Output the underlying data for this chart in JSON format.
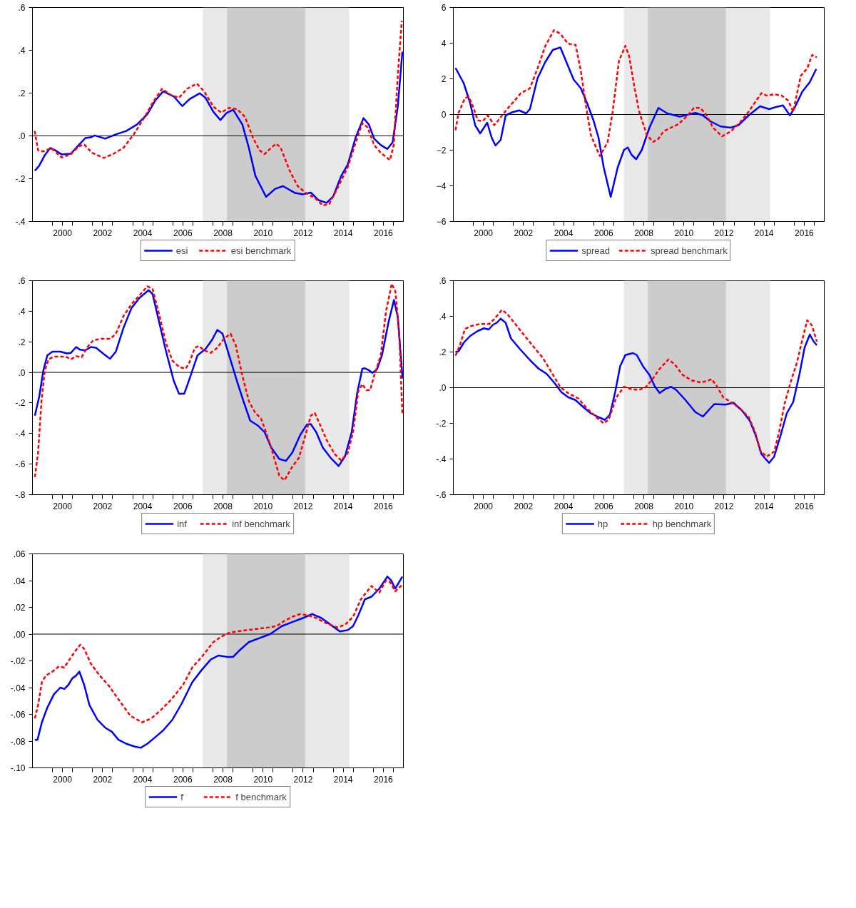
{
  "chart_data": [
    {
      "type": "line",
      "xlim": [
        1999.0,
        2017.5
      ],
      "ylim": [
        -0.4,
        0.6
      ],
      "grid": false,
      "legend": "bottom",
      "xticks": [
        {
          "value": 2000,
          "label": null
        },
        {
          "value": 2000.5,
          "label": "2000"
        },
        {
          "value": 2001,
          "label": null
        },
        {
          "value": 2002,
          "label": null
        },
        {
          "value": 2002.5,
          "label": "2002"
        },
        {
          "value": 2003,
          "label": null
        },
        {
          "value": 2004,
          "label": null
        },
        {
          "value": 2004.5,
          "label": "2004"
        },
        {
          "value": 2005,
          "label": null
        },
        {
          "value": 2006,
          "label": null
        },
        {
          "value": 2006.5,
          "label": "2006"
        },
        {
          "value": 2007,
          "label": null
        },
        {
          "value": 2008,
          "label": null
        },
        {
          "value": 2008.5,
          "label": "2008"
        },
        {
          "value": 2009,
          "label": null
        },
        {
          "value": 2010,
          "label": null
        },
        {
          "value": 2010.5,
          "label": "2010"
        },
        {
          "value": 2011,
          "label": null
        },
        {
          "value": 2012,
          "label": null
        },
        {
          "value": 2012.5,
          "label": "2012"
        },
        {
          "value": 2013,
          "label": null
        },
        {
          "value": 2014,
          "label": null
        },
        {
          "value": 2014.5,
          "label": "2014"
        },
        {
          "value": 2015,
          "label": null
        },
        {
          "value": 2016,
          "label": null
        },
        {
          "value": 2016.5,
          "label": "2016"
        },
        {
          "value": 2017,
          "label": null
        }
      ],
      "yticks": [
        {
          "value": -0.4,
          "label": "-.4"
        },
        {
          "value": -0.2,
          "label": "-.2"
        },
        {
          "value": 0,
          "label": ".0"
        },
        {
          "value": 0.2,
          "label": ".2"
        },
        {
          "value": 0.4,
          "label": ".4"
        },
        {
          "value": 0.6,
          "label": ".6"
        }
      ],
      "bands": [
        {
          "axis": "x",
          "from": 2007.5,
          "to": 2014.8,
          "color": "#e8e8e8"
        },
        {
          "axis": "x",
          "from": 2008.7,
          "to": 2012.6,
          "color": "#cccccc"
        }
      ],
      "ref_lines": [
        {
          "axis": "y",
          "value": 0,
          "color": "#000000"
        }
      ],
      "series": [
        {
          "name": "esi",
          "color": "#0000ff",
          "line_style": "solid",
          "x": [
            1999.12,
            1999.34,
            1999.61,
            1999.89,
            2000.13,
            2000.46,
            2000.92,
            2001.31,
            2001.64,
            2001.91,
            2002.1,
            2002.63,
            2003.16,
            2003.68,
            2004.21,
            2004.73,
            2005.13,
            2005.52,
            2006.05,
            2006.47,
            2006.84,
            2007.34,
            2007.63,
            2008.02,
            2008.37,
            2008.68,
            2009.01,
            2009.47,
            2009.79,
            2010.12,
            2010.65,
            2011.11,
            2011.5,
            2012.1,
            2012.49,
            2012.88,
            2013.28,
            2013.67,
            2014.0,
            2014.4,
            2014.73,
            2015.12,
            2015.51,
            2015.78,
            2016.04,
            2016.37,
            2016.7,
            2016.96,
            2017.22,
            2017.45
          ],
          "values": [
            -0.163,
            -0.139,
            -0.091,
            -0.057,
            -0.067,
            -0.087,
            -0.083,
            -0.043,
            -0.01,
            -0.007,
            0.002,
            -0.013,
            0.007,
            0.023,
            0.053,
            0.101,
            0.166,
            0.208,
            0.184,
            0.139,
            0.172,
            0.199,
            0.178,
            0.113,
            0.074,
            0.107,
            0.122,
            0.053,
            -0.055,
            -0.187,
            -0.285,
            -0.247,
            -0.235,
            -0.267,
            -0.273,
            -0.265,
            -0.301,
            -0.313,
            -0.283,
            -0.187,
            -0.133,
            -0.007,
            0.083,
            0.053,
            -0.013,
            -0.043,
            -0.061,
            -0.031,
            0.137,
            0.394
          ]
        },
        {
          "name": "esi benchmark",
          "color": "#ff0000",
          "line_style": "dashed",
          "x": [
            1999.11,
            1999.28,
            1999.54,
            1999.93,
            2000.46,
            2000.92,
            2001.31,
            2001.58,
            2001.97,
            2002.56,
            2003.02,
            2003.55,
            2004.08,
            2004.6,
            2004.99,
            2005.46,
            2005.92,
            2006.31,
            2006.71,
            2007.2,
            2007.56,
            2008.02,
            2008.41,
            2008.81,
            2009.2,
            2009.6,
            2009.99,
            2010.32,
            2010.58,
            2010.91,
            2011.15,
            2011.37,
            2011.83,
            2012.23,
            2012.62,
            2013.15,
            2013.48,
            2013.8,
            2014.2,
            2014.73,
            2015.12,
            2015.45,
            2015.71,
            2016.04,
            2016.37,
            2016.83,
            2017.02,
            2017.22,
            2017.42
          ],
          "values": [
            0.023,
            -0.067,
            -0.073,
            -0.057,
            -0.101,
            -0.085,
            -0.049,
            -0.04,
            -0.079,
            -0.103,
            -0.085,
            -0.055,
            0.011,
            0.089,
            0.154,
            0.22,
            0.19,
            0.178,
            0.22,
            0.244,
            0.208,
            0.137,
            0.109,
            0.131,
            0.125,
            0.089,
            -0.007,
            -0.067,
            -0.085,
            -0.055,
            -0.037,
            -0.053,
            -0.163,
            -0.235,
            -0.265,
            -0.295,
            -0.325,
            -0.319,
            -0.247,
            -0.145,
            -0.031,
            0.059,
            0.041,
            -0.043,
            -0.079,
            -0.113,
            -0.043,
            0.28,
            0.538
          ]
        }
      ]
    },
    {
      "type": "line",
      "xlim": [
        1999.0,
        2017.5
      ],
      "ylim": [
        -6,
        6
      ],
      "grid": false,
      "legend": "bottom",
      "xticks": [
        {
          "value": 2000,
          "label": null
        },
        {
          "value": 2000.5,
          "label": "2000"
        },
        {
          "value": 2001,
          "label": null
        },
        {
          "value": 2002,
          "label": null
        },
        {
          "value": 2002.5,
          "label": "2002"
        },
        {
          "value": 2003,
          "label": null
        },
        {
          "value": 2004,
          "label": null
        },
        {
          "value": 2004.5,
          "label": "2004"
        },
        {
          "value": 2005,
          "label": null
        },
        {
          "value": 2006,
          "label": null
        },
        {
          "value": 2006.5,
          "label": "2006"
        },
        {
          "value": 2007,
          "label": null
        },
        {
          "value": 2008,
          "label": null
        },
        {
          "value": 2008.5,
          "label": "2008"
        },
        {
          "value": 2009,
          "label": null
        },
        {
          "value": 2010,
          "label": null
        },
        {
          "value": 2010.5,
          "label": "2010"
        },
        {
          "value": 2011,
          "label": null
        },
        {
          "value": 2012,
          "label": null
        },
        {
          "value": 2012.5,
          "label": "2012"
        },
        {
          "value": 2013,
          "label": null
        },
        {
          "value": 2014,
          "label": null
        },
        {
          "value": 2014.5,
          "label": "2014"
        },
        {
          "value": 2015,
          "label": null
        },
        {
          "value": 2016,
          "label": null
        },
        {
          "value": 2016.5,
          "label": "2016"
        },
        {
          "value": 2017,
          "label": null
        }
      ],
      "yticks": [
        -6,
        -4,
        -2,
        0,
        2,
        4,
        6
      ],
      "bands": [
        {
          "axis": "x",
          "from": 2007.5,
          "to": 2014.8,
          "color": "#e8e8e8"
        },
        {
          "axis": "x",
          "from": 2008.7,
          "to": 2012.6,
          "color": "#cccccc"
        }
      ],
      "ref_lines": [
        {
          "axis": "y",
          "value": 0,
          "color": "#000000"
        }
      ],
      "series": [
        {
          "name": "spread",
          "color": "#0000ff",
          "line_style": "solid",
          "x": [
            1999.11,
            1999.52,
            1999.84,
            2000.09,
            2000.34,
            2000.69,
            2000.91,
            2001.1,
            2001.36,
            2001.61,
            2001.93,
            2002.28,
            2002.63,
            2002.82,
            2003.2,
            2003.58,
            2003.96,
            2004.34,
            2004.72,
            2005.0,
            2005.36,
            2005.67,
            2005.99,
            2006.24,
            2006.5,
            2006.85,
            2007.2,
            2007.51,
            2007.7,
            2007.89,
            2008.12,
            2008.4,
            2008.78,
            2009.23,
            2009.67,
            2010.3,
            2011.07,
            2011.45,
            2011.83,
            2012.33,
            2012.84,
            2013.22,
            2013.73,
            2014.3,
            2014.75,
            2015.06,
            2015.44,
            2015.79,
            2016.02,
            2016.4,
            2016.78,
            2017.1
          ],
          "values": [
            2.61,
            1.75,
            0.64,
            -0.61,
            -1.06,
            -0.46,
            -1.29,
            -1.74,
            -1.43,
            -0.05,
            0.12,
            0.23,
            0.06,
            0.3,
            2.03,
            2.93,
            3.62,
            3.76,
            2.72,
            1.96,
            1.47,
            0.64,
            -0.33,
            -1.29,
            -2.96,
            -4.62,
            -2.96,
            -1.99,
            -1.85,
            -2.26,
            -2.51,
            -1.99,
            -0.74,
            0.37,
            0.06,
            -0.12,
            0.09,
            -0.05,
            -0.39,
            -0.67,
            -0.74,
            -0.6,
            -0.05,
            0.46,
            0.3,
            0.41,
            0.51,
            -0.05,
            0.37,
            1.27,
            1.82,
            2.55
          ]
        },
        {
          "name": "spread benchmark",
          "color": "#ff0000",
          "line_style": "dashed",
          "x": [
            1999.11,
            1999.26,
            1999.58,
            1999.77,
            1999.96,
            2000.22,
            2000.47,
            2000.72,
            2001.04,
            2001.29,
            2001.68,
            2002.06,
            2002.37,
            2002.82,
            2003.2,
            2003.58,
            2004.02,
            2004.34,
            2004.72,
            2005.1,
            2005.36,
            2005.61,
            2005.86,
            2006.12,
            2006.31,
            2006.69,
            2006.94,
            2007.26,
            2007.58,
            2007.77,
            2008.02,
            2008.27,
            2008.65,
            2008.97,
            2009.23,
            2009.48,
            2009.8,
            2010.24,
            2010.69,
            2011.0,
            2011.32,
            2011.64,
            2011.95,
            2012.4,
            2012.84,
            2013.29,
            2013.73,
            2014.11,
            2014.37,
            2014.62,
            2015.0,
            2015.38,
            2015.7,
            2015.95,
            2016.33,
            2016.65,
            2016.9,
            2017.13
          ],
          "values": [
            -0.88,
            0.09,
            0.92,
            0.99,
            0.51,
            -0.33,
            -0.37,
            -0.05,
            -0.6,
            -0.26,
            0.3,
            0.78,
            1.2,
            1.47,
            2.58,
            3.83,
            4.73,
            4.52,
            3.97,
            3.9,
            2.44,
            0.51,
            -1.15,
            -1.85,
            -2.33,
            -1.57,
            0.09,
            3.0,
            3.85,
            3.27,
            1.61,
            0.16,
            -1.16,
            -1.54,
            -1.36,
            -0.95,
            -0.77,
            -0.53,
            -0.05,
            0.37,
            0.37,
            -0.05,
            -0.74,
            -1.22,
            -0.95,
            -0.46,
            0.16,
            0.78,
            1.2,
            1.06,
            1.13,
            1.06,
            0.78,
            0.16,
            2.17,
            2.58,
            3.34,
            3.2
          ]
        }
      ]
    },
    {
      "type": "line",
      "xlim": [
        1999.0,
        2017.5
      ],
      "ylim": [
        -0.8,
        0.6
      ],
      "grid": false,
      "legend": "bottom",
      "xticks": [
        {
          "value": 2000,
          "label": null
        },
        {
          "value": 2000.5,
          "label": "2000"
        },
        {
          "value": 2001,
          "label": null
        },
        {
          "value": 2002,
          "label": null
        },
        {
          "value": 2002.5,
          "label": "2002"
        },
        {
          "value": 2003,
          "label": null
        },
        {
          "value": 2004,
          "label": null
        },
        {
          "value": 2004.5,
          "label": "2004"
        },
        {
          "value": 2005,
          "label": null
        },
        {
          "value": 2006,
          "label": null
        },
        {
          "value": 2006.5,
          "label": "2006"
        },
        {
          "value": 2007,
          "label": null
        },
        {
          "value": 2008,
          "label": null
        },
        {
          "value": 2008.5,
          "label": "2008"
        },
        {
          "value": 2009,
          "label": null
        },
        {
          "value": 2010,
          "label": null
        },
        {
          "value": 2010.5,
          "label": "2010"
        },
        {
          "value": 2011,
          "label": null
        },
        {
          "value": 2012,
          "label": null
        },
        {
          "value": 2012.5,
          "label": "2012"
        },
        {
          "value": 2013,
          "label": null
        },
        {
          "value": 2014,
          "label": null
        },
        {
          "value": 2014.5,
          "label": "2014"
        },
        {
          "value": 2015,
          "label": null
        },
        {
          "value": 2016,
          "label": null
        },
        {
          "value": 2016.5,
          "label": "2016"
        },
        {
          "value": 2017,
          "label": null
        }
      ],
      "yticks": [
        {
          "value": -0.8,
          "label": "-.8"
        },
        {
          "value": -0.6,
          "label": "-.6"
        },
        {
          "value": -0.4,
          "label": "-.4"
        },
        {
          "value": -0.2,
          "label": "-.2"
        },
        {
          "value": 0,
          "label": ".0"
        },
        {
          "value": 0.2,
          "label": ".2"
        },
        {
          "value": 0.4,
          "label": ".4"
        },
        {
          "value": 0.6,
          "label": ".6"
        }
      ],
      "bands": [
        {
          "axis": "x",
          "from": 2007.5,
          "to": 2014.8,
          "color": "#e8e8e8"
        },
        {
          "axis": "x",
          "from": 2008.7,
          "to": 2012.6,
          "color": "#cccccc"
        }
      ],
      "ref_lines": [
        {
          "axis": "y",
          "value": 0,
          "color": "#000000"
        }
      ],
      "series": [
        {
          "name": "inf",
          "color": "#0000ff",
          "line_style": "solid",
          "x": [
            1999.12,
            1999.34,
            1999.54,
            1999.74,
            2000.0,
            2000.39,
            2000.72,
            2000.92,
            2001.18,
            2001.38,
            2001.64,
            2001.91,
            2002.17,
            2002.56,
            2002.87,
            2003.16,
            2003.55,
            2003.94,
            2004.34,
            2004.8,
            2004.99,
            2005.26,
            2005.65,
            2006.05,
            2006.31,
            2006.57,
            2006.84,
            2007.23,
            2007.63,
            2007.95,
            2008.22,
            2008.48,
            2008.81,
            2009.2,
            2009.53,
            2009.86,
            2010.26,
            2010.58,
            2010.91,
            2011.31,
            2011.64,
            2011.96,
            2012.36,
            2012.69,
            2012.88,
            2013.15,
            2013.48,
            2013.87,
            2014.27,
            2014.59,
            2014.92,
            2015.19,
            2015.45,
            2015.58,
            2015.78,
            2015.95,
            2016.18,
            2016.43,
            2016.76,
            2017.03,
            2017.22,
            2017.46
          ],
          "values": [
            -0.283,
            -0.157,
            0.01,
            0.111,
            0.136,
            0.136,
            0.124,
            0.128,
            0.166,
            0.148,
            0.144,
            0.166,
            0.161,
            0.119,
            0.089,
            0.136,
            0.295,
            0.421,
            0.488,
            0.538,
            0.513,
            0.362,
            0.144,
            -0.057,
            -0.14,
            -0.14,
            -0.04,
            0.111,
            0.153,
            0.211,
            0.278,
            0.253,
            0.111,
            -0.057,
            -0.191,
            -0.316,
            -0.35,
            -0.391,
            -0.492,
            -0.567,
            -0.579,
            -0.525,
            -0.408,
            -0.341,
            -0.338,
            -0.391,
            -0.492,
            -0.559,
            -0.613,
            -0.55,
            -0.391,
            -0.14,
            0.024,
            0.027,
            0.014,
            -0.003,
            0.019,
            0.111,
            0.329,
            0.474,
            0.362,
            -0.04
          ]
        },
        {
          "name": "inf benchmark",
          "color": "#ff0000",
          "line_style": "dashed",
          "x": [
            1999.12,
            1999.28,
            1999.45,
            1999.61,
            1999.8,
            2000.07,
            2000.66,
            2000.92,
            2001.18,
            2001.45,
            2001.71,
            2002.04,
            2002.43,
            2002.89,
            2003.16,
            2003.55,
            2003.94,
            2004.34,
            2004.73,
            2004.99,
            2005.32,
            2005.65,
            2005.98,
            2006.31,
            2006.64,
            2006.84,
            2007.1,
            2007.3,
            2007.56,
            2007.89,
            2008.22,
            2008.55,
            2008.88,
            2009.14,
            2009.47,
            2009.8,
            2010.12,
            2010.39,
            2010.65,
            2010.98,
            2011.31,
            2011.57,
            2011.96,
            2012.29,
            2012.62,
            2012.88,
            2013.08,
            2013.34,
            2013.67,
            2014.07,
            2014.4,
            2014.73,
            2014.99,
            2015.25,
            2015.45,
            2015.65,
            2015.84,
            2016.04,
            2016.37,
            2016.63,
            2016.92,
            2017.1,
            2017.29,
            2017.45
          ],
          "values": [
            -0.685,
            -0.525,
            -0.19,
            0.01,
            0.086,
            0.103,
            0.103,
            0.086,
            0.106,
            0.099,
            0.161,
            0.211,
            0.22,
            0.22,
            0.253,
            0.371,
            0.446,
            0.505,
            0.563,
            0.546,
            0.379,
            0.195,
            0.077,
            0.036,
            0.024,
            0.069,
            0.161,
            0.173,
            0.144,
            0.128,
            0.161,
            0.22,
            0.253,
            0.178,
            -0.023,
            -0.19,
            -0.266,
            -0.299,
            -0.391,
            -0.525,
            -0.676,
            -0.706,
            -0.617,
            -0.559,
            -0.408,
            -0.283,
            -0.266,
            -0.341,
            -0.442,
            -0.534,
            -0.576,
            -0.525,
            -0.391,
            -0.124,
            -0.077,
            -0.116,
            -0.116,
            -0.023,
            0.111,
            0.396,
            0.58,
            0.53,
            0.262,
            -0.274
          ]
        }
      ]
    },
    {
      "type": "line",
      "xlim": [
        1999.0,
        2017.5
      ],
      "ylim": [
        -0.6,
        0.6
      ],
      "grid": false,
      "legend": "bottom",
      "xticks": [
        {
          "value": 2000,
          "label": null
        },
        {
          "value": 2000.5,
          "label": "2000"
        },
        {
          "value": 2001,
          "label": null
        },
        {
          "value": 2002,
          "label": null
        },
        {
          "value": 2002.5,
          "label": "2002"
        },
        {
          "value": 2003,
          "label": null
        },
        {
          "value": 2004,
          "label": null
        },
        {
          "value": 2004.5,
          "label": "2004"
        },
        {
          "value": 2005,
          "label": null
        },
        {
          "value": 2006,
          "label": null
        },
        {
          "value": 2006.5,
          "label": "2006"
        },
        {
          "value": 2007,
          "label": null
        },
        {
          "value": 2008,
          "label": null
        },
        {
          "value": 2008.5,
          "label": "2008"
        },
        {
          "value": 2009,
          "label": null
        },
        {
          "value": 2010,
          "label": null
        },
        {
          "value": 2010.5,
          "label": "2010"
        },
        {
          "value": 2011,
          "label": null
        },
        {
          "value": 2012,
          "label": null
        },
        {
          "value": 2012.5,
          "label": "2012"
        },
        {
          "value": 2013,
          "label": null
        },
        {
          "value": 2014,
          "label": null
        },
        {
          "value": 2014.5,
          "label": "2014"
        },
        {
          "value": 2015,
          "label": null
        },
        {
          "value": 2016,
          "label": null
        },
        {
          "value": 2016.5,
          "label": "2016"
        },
        {
          "value": 2017,
          "label": null
        }
      ],
      "yticks": [
        {
          "value": -0.6,
          "label": "-.6"
        },
        {
          "value": -0.4,
          "label": "-.4"
        },
        {
          "value": -0.2,
          "label": "-.2"
        },
        {
          "value": 0,
          "label": ".0"
        },
        {
          "value": 0.2,
          "label": ".2"
        },
        {
          "value": 0.4,
          "label": ".4"
        },
        {
          "value": 0.6,
          "label": ".6"
        }
      ],
      "bands": [
        {
          "axis": "x",
          "from": 2007.5,
          "to": 2014.8,
          "color": "#e8e8e8"
        },
        {
          "axis": "x",
          "from": 2008.7,
          "to": 2012.6,
          "color": "#cccccc"
        }
      ],
      "ref_lines": [
        {
          "axis": "y",
          "value": 0,
          "color": "#000000"
        }
      ],
      "series": [
        {
          "name": "hp",
          "color": "#0000ff",
          "line_style": "solid",
          "x": [
            1999.11,
            1999.26,
            1999.52,
            1999.84,
            2000.22,
            2000.53,
            2000.76,
            2000.98,
            2001.17,
            2001.36,
            2001.61,
            2001.87,
            2002.31,
            2002.82,
            2003.26,
            2003.64,
            2004.02,
            2004.4,
            2004.72,
            2005.1,
            2005.48,
            2005.86,
            2006.24,
            2006.56,
            2006.81,
            2007.07,
            2007.32,
            2007.58,
            2007.96,
            2008.15,
            2008.46,
            2008.78,
            2009.04,
            2009.29,
            2009.61,
            2009.86,
            2010.11,
            2010.56,
            2011.07,
            2011.45,
            2011.76,
            2012.02,
            2012.59,
            2012.97,
            2013.41,
            2013.79,
            2014.11,
            2014.37,
            2014.75,
            2015.0,
            2015.32,
            2015.63,
            2015.95,
            2016.27,
            2016.52,
            2016.78,
            2016.97,
            2017.13
          ],
          "values": [
            0.2,
            0.204,
            0.252,
            0.29,
            0.318,
            0.333,
            0.326,
            0.353,
            0.364,
            0.387,
            0.364,
            0.277,
            0.218,
            0.155,
            0.106,
            0.079,
            0.03,
            -0.026,
            -0.053,
            -0.07,
            -0.109,
            -0.144,
            -0.165,
            -0.181,
            -0.151,
            -0.026,
            0.12,
            0.183,
            0.194,
            0.183,
            0.12,
            0.072,
            0.009,
            -0.03,
            -0.005,
            0.005,
            -0.012,
            -0.067,
            -0.137,
            -0.162,
            -0.123,
            -0.092,
            -0.095,
            -0.084,
            -0.13,
            -0.186,
            -0.276,
            -0.373,
            -0.422,
            -0.387,
            -0.269,
            -0.144,
            -0.081,
            0.079,
            0.225,
            0.298,
            0.259,
            0.238
          ]
        },
        {
          "name": "hp benchmark",
          "color": "#ff0000",
          "line_style": "dashed",
          "x": [
            1999.11,
            1999.33,
            1999.58,
            1999.9,
            2000.34,
            2000.79,
            2001.04,
            2001.42,
            2001.68,
            2001.99,
            2002.44,
            2002.94,
            2003.45,
            2003.83,
            2004.34,
            2004.72,
            2005.23,
            2005.61,
            2006.12,
            2006.5,
            2006.75,
            2007.13,
            2007.51,
            2007.89,
            2008.27,
            2008.59,
            2008.91,
            2009.29,
            2009.73,
            2010.05,
            2010.43,
            2010.88,
            2011.32,
            2011.64,
            2011.89,
            2012.14,
            2012.46,
            2012.84,
            2013.29,
            2013.73,
            2014.05,
            2014.3,
            2014.62,
            2015.0,
            2015.25,
            2015.51,
            2015.82,
            2016.14,
            2016.4,
            2016.65,
            2016.88,
            2017.13
          ],
          "values": [
            0.18,
            0.238,
            0.329,
            0.346,
            0.357,
            0.357,
            0.384,
            0.436,
            0.415,
            0.371,
            0.308,
            0.238,
            0.169,
            0.099,
            0.002,
            -0.03,
            -0.06,
            -0.109,
            -0.165,
            -0.2,
            -0.179,
            -0.054,
            0.005,
            -0.009,
            -0.012,
            0.002,
            0.044,
            0.106,
            0.158,
            0.13,
            0.072,
            0.041,
            0.03,
            0.037,
            0.048,
            0.009,
            -0.054,
            -0.081,
            -0.116,
            -0.165,
            -0.248,
            -0.352,
            -0.387,
            -0.359,
            -0.248,
            -0.095,
            0.03,
            0.141,
            0.266,
            0.378,
            0.35,
            0.259
          ]
        }
      ]
    },
    {
      "type": "line",
      "xlim": [
        1999.0,
        2017.5
      ],
      "ylim": [
        -0.1,
        0.06
      ],
      "grid": false,
      "legend": "bottom",
      "xticks": [
        {
          "value": 2000,
          "label": null
        },
        {
          "value": 2000.5,
          "label": "2000"
        },
        {
          "value": 2001,
          "label": null
        },
        {
          "value": 2002,
          "label": null
        },
        {
          "value": 2002.5,
          "label": "2002"
        },
        {
          "value": 2003,
          "label": null
        },
        {
          "value": 2004,
          "label": null
        },
        {
          "value": 2004.5,
          "label": "2004"
        },
        {
          "value": 2005,
          "label": null
        },
        {
          "value": 2006,
          "label": null
        },
        {
          "value": 2006.5,
          "label": "2006"
        },
        {
          "value": 2007,
          "label": null
        },
        {
          "value": 2008,
          "label": null
        },
        {
          "value": 2008.5,
          "label": "2008"
        },
        {
          "value": 2009,
          "label": null
        },
        {
          "value": 2010,
          "label": null
        },
        {
          "value": 2010.5,
          "label": "2010"
        },
        {
          "value": 2011,
          "label": null
        },
        {
          "value": 2012,
          "label": null
        },
        {
          "value": 2012.5,
          "label": "2012"
        },
        {
          "value": 2013,
          "label": null
        },
        {
          "value": 2014,
          "label": null
        },
        {
          "value": 2014.5,
          "label": "2014"
        },
        {
          "value": 2015,
          "label": null
        },
        {
          "value": 2016,
          "label": null
        },
        {
          "value": 2016.5,
          "label": "2016"
        },
        {
          "value": 2017,
          "label": null
        }
      ],
      "yticks": [
        {
          "value": -0.1,
          "label": "-.10"
        },
        {
          "value": -0.08,
          "label": "-.08"
        },
        {
          "value": -0.06,
          "label": "-.06"
        },
        {
          "value": -0.04,
          "label": "-.04"
        },
        {
          "value": -0.02,
          "label": "-.02"
        },
        {
          "value": 0,
          "label": ".00"
        },
        {
          "value": 0.02,
          "label": ".02"
        },
        {
          "value": 0.04,
          "label": ".04"
        },
        {
          "value": 0.06,
          "label": ".06"
        }
      ],
      "bands": [
        {
          "axis": "x",
          "from": 2007.5,
          "to": 2014.8,
          "color": "#e8e8e8"
        },
        {
          "axis": "x",
          "from": 2008.7,
          "to": 2012.6,
          "color": "#cccccc"
        }
      ],
      "ref_lines": [
        {
          "axis": "y",
          "value": 0,
          "color": "#000000"
        }
      ],
      "series": [
        {
          "name": "f",
          "color": "#0000ff",
          "line_style": "solid",
          "x": [
            1999.12,
            1999.25,
            1999.47,
            1999.74,
            2000.07,
            2000.39,
            2000.59,
            2000.79,
            2000.99,
            2001.18,
            2001.34,
            2001.58,
            2001.84,
            2002.24,
            2002.63,
            2002.96,
            2003.29,
            2003.68,
            2004.08,
            2004.4,
            2004.73,
            2005.13,
            2005.52,
            2005.98,
            2006.44,
            2006.97,
            2007.43,
            2007.89,
            2008.28,
            2008.68,
            2009.01,
            2009.34,
            2009.79,
            2010.32,
            2010.85,
            2011.44,
            2011.96,
            2012.49,
            2012.95,
            2013.41,
            2013.87,
            2014.33,
            2014.73,
            2014.99,
            2015.25,
            2015.58,
            2015.91,
            2016.3,
            2016.7,
            2016.9,
            2017.09,
            2017.29,
            2017.45
          ],
          "values": [
            -0.079,
            -0.079,
            -0.066,
            -0.055,
            -0.045,
            -0.04,
            -0.041,
            -0.038,
            -0.033,
            -0.031,
            -0.028,
            -0.038,
            -0.053,
            -0.064,
            -0.07,
            -0.073,
            -0.079,
            -0.082,
            -0.084,
            -0.085,
            -0.082,
            -0.077,
            -0.072,
            -0.064,
            -0.052,
            -0.036,
            -0.027,
            -0.019,
            -0.016,
            -0.017,
            -0.017,
            -0.012,
            -0.006,
            -0.003,
            0.0,
            0.006,
            0.009,
            0.012,
            0.015,
            0.012,
            0.007,
            0.002,
            0.003,
            0.006,
            0.014,
            0.026,
            0.028,
            0.034,
            0.043,
            0.04,
            0.034,
            0.039,
            0.043
          ]
        },
        {
          "name": "f benchmark",
          "color": "#ff0000",
          "line_style": "dashed",
          "x": [
            1999.12,
            1999.28,
            1999.47,
            1999.67,
            2000.0,
            2000.33,
            2000.59,
            2000.85,
            2001.12,
            2001.38,
            2001.58,
            2001.91,
            2002.3,
            2002.83,
            2003.35,
            2003.88,
            2004.47,
            2004.93,
            2005.39,
            2005.92,
            2006.51,
            2006.97,
            2007.5,
            2008.02,
            2008.41,
            2008.81,
            2009.2,
            2009.73,
            2010.26,
            2010.78,
            2011.18,
            2011.57,
            2011.96,
            2012.36,
            2012.75,
            2013.15,
            2013.67,
            2014.2,
            2014.59,
            2014.99,
            2015.38,
            2015.91,
            2016.3,
            2016.63,
            2016.83,
            2017.09,
            2017.45
          ],
          "values": [
            -0.063,
            -0.053,
            -0.036,
            -0.031,
            -0.028,
            -0.024,
            -0.025,
            -0.019,
            -0.013,
            -0.008,
            -0.011,
            -0.022,
            -0.03,
            -0.039,
            -0.05,
            -0.061,
            -0.066,
            -0.063,
            -0.057,
            -0.049,
            -0.038,
            -0.025,
            -0.016,
            -0.006,
            -0.002,
            0.001,
            0.002,
            0.003,
            0.004,
            0.005,
            0.006,
            0.01,
            0.013,
            0.015,
            0.014,
            0.012,
            0.008,
            0.005,
            0.007,
            0.013,
            0.026,
            0.036,
            0.031,
            0.04,
            0.039,
            0.032,
            0.037
          ]
        }
      ]
    }
  ]
}
